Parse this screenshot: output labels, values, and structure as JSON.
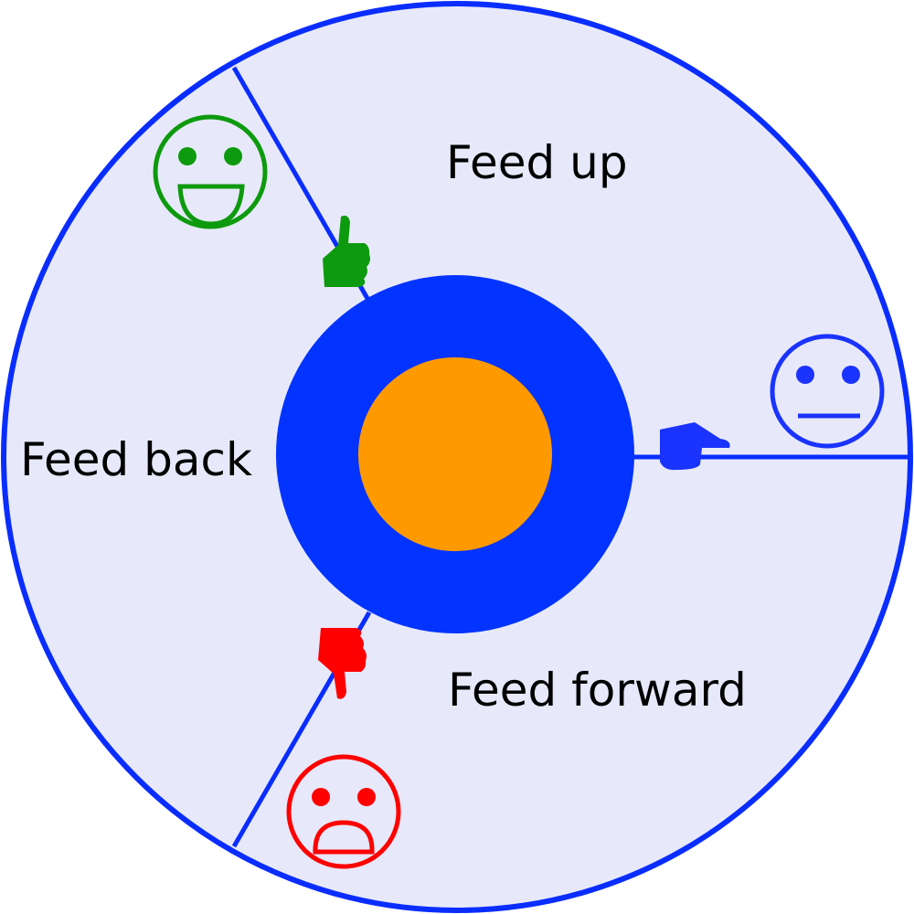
{
  "diagram": {
    "segments": [
      {
        "key": "up",
        "label": "Feed up"
      },
      {
        "key": "back",
        "label": "Feed back"
      },
      {
        "key": "forward",
        "label": "Feed forward"
      }
    ],
    "markers": {
      "positive": {
        "icon": "thumbs-up-icon",
        "face": "smiley-face-icon",
        "color": "#0e9a0e"
      },
      "neutral": {
        "icon": "pointing-hand-icon",
        "face": "neutral-face-icon",
        "color": "#1a33ff"
      },
      "negative": {
        "icon": "thumbs-down-icon",
        "face": "sad-face-icon",
        "color": "#ff0000"
      }
    },
    "colors": {
      "outer_fill": "#e7e9fa",
      "outline": "#0a2dff",
      "ring": "#0233ff",
      "core": "#ff9900",
      "label": "#000000"
    }
  }
}
